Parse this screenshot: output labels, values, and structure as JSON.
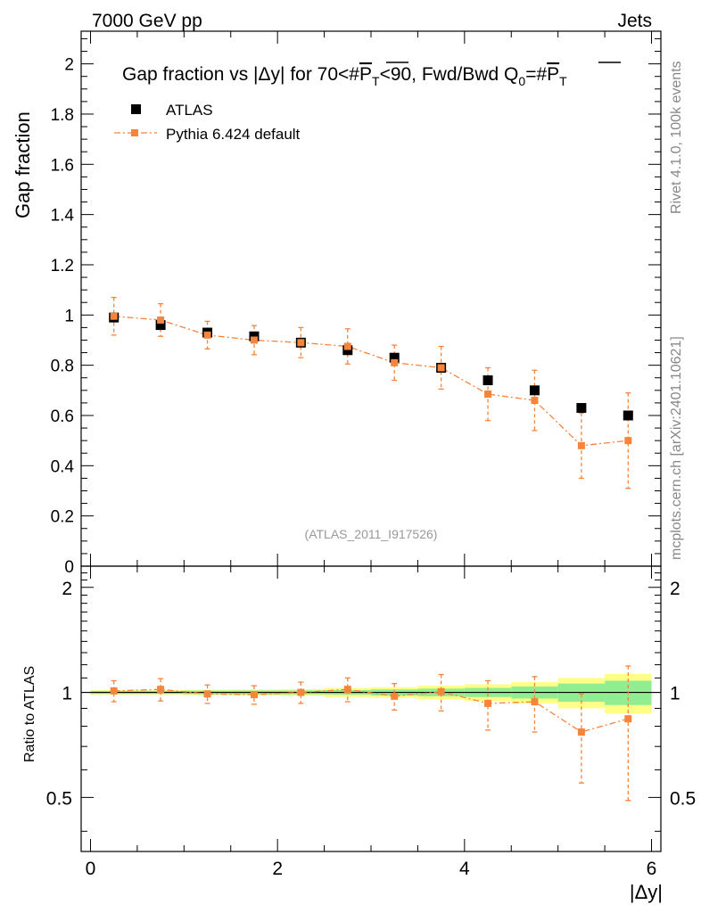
{
  "header": {
    "left": "7000 GeV pp",
    "right": "Jets"
  },
  "side_labels": {
    "rivet": "Rivet 4.1.0,  100k events",
    "mcplots": "mcplots.cern.ch [arXiv:2401.10621]"
  },
  "chart_data": {
    "type": "scatter",
    "title": "Gap fraction vs |Δy| for 70<#P̅T<90, Fwd/Bwd Q0=#P̅T",
    "title_parts": {
      "a": "Gap fraction vs |Δy| for 70<#",
      "p1": "P",
      "t1": "T",
      "b": "<90, Fwd/Bwd Q",
      "q": "0",
      "c": "=#",
      "p2": "P",
      "t2": "T"
    },
    "ylabel": "Gap fraction",
    "ratio_ylabel": "Ratio to ATLAS",
    "xlabel": "|Δy|",
    "watermark": "(ATLAS_2011_I917526)",
    "xlim": [
      -0.1,
      6.1
    ],
    "ylim": [
      0,
      2.13
    ],
    "ratio_ylim": [
      0.35,
      2.3
    ],
    "x_ticks": [
      "0",
      "2",
      "4",
      "6"
    ],
    "y_ticks": [
      "0",
      "0.2",
      "0.4",
      "0.6",
      "0.8",
      "1",
      "1.2",
      "1.4",
      "1.6",
      "1.8",
      "2"
    ],
    "ratio_ticks_left": [
      "0.5",
      "1",
      "2"
    ],
    "ratio_ticks_right": [
      "0.5",
      "1",
      "2"
    ],
    "x": [
      0.25,
      0.75,
      1.25,
      1.75,
      2.25,
      2.75,
      3.25,
      3.75,
      4.25,
      4.75,
      5.25,
      5.75
    ],
    "series": [
      {
        "name": "ATLAS",
        "color": "#000000",
        "values": [
          0.99,
          0.96,
          0.93,
          0.915,
          0.89,
          0.86,
          0.83,
          0.79,
          0.74,
          0.7,
          0.63,
          0.6
        ],
        "errors": [
          0.01,
          0.01,
          0.01,
          0.01,
          0.01,
          0.01,
          0.01,
          0.01,
          0.01,
          0.01,
          0.01,
          0.01
        ]
      },
      {
        "name": "Pythia 6.424 default",
        "color": "#f5843c",
        "values": [
          0.995,
          0.98,
          0.92,
          0.9,
          0.89,
          0.875,
          0.81,
          0.79,
          0.685,
          0.66,
          0.48,
          0.5
        ],
        "errors": [
          0.075,
          0.065,
          0.055,
          0.058,
          0.06,
          0.07,
          0.07,
          0.085,
          0.105,
          0.12,
          0.13,
          0.19
        ]
      }
    ],
    "ratio": {
      "values": [
        1.01,
        1.02,
        0.99,
        0.985,
        1.0,
        1.02,
        0.975,
        1.005,
        0.93,
        0.94,
        0.77,
        0.84
      ],
      "errors": [
        0.07,
        0.075,
        0.06,
        0.06,
        0.07,
        0.08,
        0.085,
        0.12,
        0.15,
        0.17,
        0.22,
        0.35
      ],
      "band_inner": [
        0.01,
        0.01,
        0.012,
        0.013,
        0.013,
        0.015,
        0.02,
        0.025,
        0.03,
        0.04,
        0.06,
        0.08
      ],
      "band_outer": [
        0.015,
        0.015,
        0.018,
        0.02,
        0.022,
        0.03,
        0.035,
        0.045,
        0.055,
        0.07,
        0.1,
        0.13
      ]
    }
  },
  "colors": {
    "band_inner": "#90ee90",
    "band_outer": "#ffff88"
  }
}
